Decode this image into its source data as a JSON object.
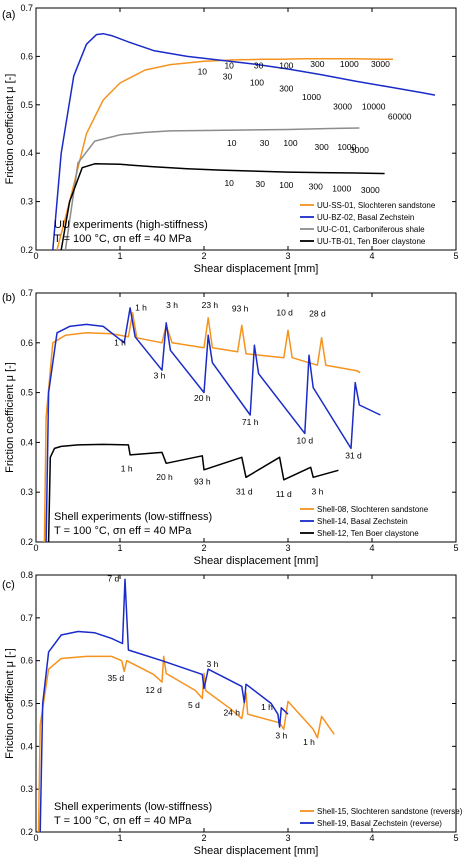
{
  "colors": {
    "orange": "#f5931f",
    "blue": "#1a2bc8",
    "gray": "#8c8c8c",
    "black": "#000000"
  },
  "chart_data": [
    {
      "panel": "(a)",
      "type": "line",
      "xlabel": "Shear displacement [mm]",
      "ylabel": "Friction coefficient μ [-]",
      "xlim": [
        0,
        5
      ],
      "ylim": [
        0.2,
        0.7
      ],
      "xticks": [
        "0",
        "1",
        "2",
        "3",
        "4",
        "5"
      ],
      "yticks": [
        "0.2",
        "0.3",
        "0.4",
        "0.5",
        "0.6",
        "0.7"
      ],
      "grid": false,
      "legend_position": "lower-right",
      "text_lines": [
        "UU experiments (high-stiffness)",
        "T = 100 °C, σn eff = 40 MPa"
      ],
      "series": [
        {
          "name": "UU-SS-01, Slochteren sandstone",
          "color": "orange",
          "x": [
            0.25,
            0.4,
            0.6,
            0.8,
            1.0,
            1.3,
            1.6,
            2.0,
            2.4,
            2.7,
            2.9,
            3.2,
            3.5,
            3.8,
            4.1,
            4.25
          ],
          "y": [
            0.2,
            0.3,
            0.44,
            0.51,
            0.545,
            0.572,
            0.583,
            0.59,
            0.593,
            0.594,
            0.594,
            0.595,
            0.595,
            0.595,
            0.594,
            0.594
          ]
        },
        {
          "name": "UU-BZ-02, Basal Zechstein",
          "color": "blue",
          "x": [
            0.2,
            0.3,
            0.45,
            0.6,
            0.72,
            0.8,
            0.9,
            1.1,
            1.4,
            1.8,
            2.2,
            2.6,
            3.0,
            3.4,
            3.8,
            4.2,
            4.6,
            4.75
          ],
          "y": [
            0.2,
            0.4,
            0.56,
            0.625,
            0.645,
            0.647,
            0.643,
            0.63,
            0.612,
            0.6,
            0.592,
            0.584,
            0.574,
            0.562,
            0.549,
            0.537,
            0.525,
            0.52
          ]
        },
        {
          "name": "UU-C-01, Carboniferous shale",
          "color": "gray",
          "x": [
            0.35,
            0.5,
            0.7,
            1.0,
            1.3,
            1.6,
            2.0,
            2.5,
            3.0,
            3.5,
            3.85
          ],
          "y": [
            0.2,
            0.38,
            0.425,
            0.438,
            0.443,
            0.446,
            0.447,
            0.448,
            0.449,
            0.451,
            0.452
          ]
        },
        {
          "name": "UU-TB-01, Ten Boer claystone",
          "color": "black",
          "x": [
            0.3,
            0.4,
            0.55,
            0.7,
            1.0,
            1.4,
            1.8,
            2.2,
            2.6,
            3.0,
            3.4,
            3.8,
            4.15
          ],
          "y": [
            0.2,
            0.3,
            0.37,
            0.378,
            0.377,
            0.372,
            0.368,
            0.365,
            0.363,
            0.361,
            0.36,
            0.359,
            0.358
          ]
        }
      ],
      "annotations": [
        {
          "text": "10",
          "x": 2.3,
          "y": 0.575
        },
        {
          "text": "10",
          "x": 1.98,
          "y": 0.563
        },
        {
          "text": "30",
          "x": 2.65,
          "y": 0.575
        },
        {
          "text": "30",
          "x": 2.28,
          "y": 0.552
        },
        {
          "text": "100",
          "x": 2.98,
          "y": 0.575
        },
        {
          "text": "100",
          "x": 2.63,
          "y": 0.54
        },
        {
          "text": "300",
          "x": 3.35,
          "y": 0.578
        },
        {
          "text": "300",
          "x": 2.98,
          "y": 0.527
        },
        {
          "text": "1000",
          "x": 3.73,
          "y": 0.578
        },
        {
          "text": "1000",
          "x": 3.28,
          "y": 0.51
        },
        {
          "text": "3000",
          "x": 4.1,
          "y": 0.578
        },
        {
          "text": "3000",
          "x": 3.65,
          "y": 0.49
        },
        {
          "text": "10000",
          "x": 4.02,
          "y": 0.49
        },
        {
          "text": "60000",
          "x": 4.33,
          "y": 0.47
        },
        {
          "text": "10",
          "x": 2.33,
          "y": 0.415
        },
        {
          "text": "30",
          "x": 2.72,
          "y": 0.415
        },
        {
          "text": "100",
          "x": 3.03,
          "y": 0.415
        },
        {
          "text": "300",
          "x": 3.4,
          "y": 0.407
        },
        {
          "text": "1000",
          "x": 3.7,
          "y": 0.407
        },
        {
          "text": "3000",
          "x": 3.85,
          "y": 0.4
        },
        {
          "text": "10",
          "x": 2.3,
          "y": 0.332
        },
        {
          "text": "30",
          "x": 2.67,
          "y": 0.33
        },
        {
          "text": "100",
          "x": 2.98,
          "y": 0.328
        },
        {
          "text": "300",
          "x": 3.33,
          "y": 0.325
        },
        {
          "text": "1000",
          "x": 3.64,
          "y": 0.321
        },
        {
          "text": "3000",
          "x": 3.98,
          "y": 0.318
        }
      ]
    },
    {
      "panel": "(b)",
      "type": "line",
      "xlabel": "Shear displacement [mm]",
      "ylabel": "Friction coefficient μ [-]",
      "xlim": [
        0,
        5
      ],
      "ylim": [
        0.2,
        0.7
      ],
      "xticks": [
        "0",
        "1",
        "2",
        "3",
        "4",
        "5"
      ],
      "yticks": [
        "0.2",
        "0.3",
        "0.4",
        "0.5",
        "0.6",
        "0.7"
      ],
      "grid": false,
      "legend_position": "lower-right",
      "text_lines": [
        "Shell experiments (low-stiffness)",
        "T = 100 °C, σn eff = 40 MPa"
      ],
      "series": [
        {
          "name": "Shell-08, Slochteren sandstone",
          "color": "orange",
          "x": [
            0.1,
            0.12,
            0.2,
            0.35,
            0.6,
            0.9,
            1.1,
            1.15,
            1.2,
            1.5,
            1.55,
            1.62,
            2.0,
            2.05,
            2.1,
            2.4,
            2.45,
            2.5,
            2.95,
            3.0,
            3.05,
            3.35,
            3.4,
            3.45,
            3.82,
            3.86
          ],
          "y": [
            0.2,
            0.45,
            0.6,
            0.615,
            0.62,
            0.618,
            0.612,
            0.66,
            0.61,
            0.6,
            0.635,
            0.6,
            0.59,
            0.65,
            0.59,
            0.582,
            0.635,
            0.578,
            0.57,
            0.625,
            0.57,
            0.555,
            0.61,
            0.555,
            0.544,
            0.54
          ]
        },
        {
          "name": "Shell-14, Basal Zechstein",
          "color": "blue",
          "x": [
            0.12,
            0.15,
            0.25,
            0.4,
            0.6,
            0.8,
            1.05,
            1.12,
            1.18,
            1.5,
            1.55,
            1.6,
            2.0,
            2.05,
            2.1,
            2.55,
            2.6,
            2.65,
            3.2,
            3.25,
            3.3,
            3.75,
            3.8,
            3.85,
            4.1
          ],
          "y": [
            0.2,
            0.5,
            0.62,
            0.633,
            0.637,
            0.633,
            0.6,
            0.67,
            0.612,
            0.545,
            0.64,
            0.585,
            0.5,
            0.615,
            0.56,
            0.455,
            0.595,
            0.538,
            0.418,
            0.575,
            0.51,
            0.388,
            0.52,
            0.475,
            0.455
          ]
        },
        {
          "name": "Shell-12, Ten Boer claystone",
          "color": "black",
          "x": [
            0.15,
            0.17,
            0.22,
            0.3,
            0.5,
            0.8,
            1.1,
            1.12,
            1.5,
            1.55,
            1.98,
            2.0,
            2.45,
            2.5,
            2.9,
            2.95,
            3.27,
            3.3,
            3.6
          ],
          "y": [
            0.2,
            0.37,
            0.388,
            0.392,
            0.395,
            0.396,
            0.395,
            0.375,
            0.38,
            0.358,
            0.373,
            0.345,
            0.37,
            0.33,
            0.37,
            0.325,
            0.35,
            0.33,
            0.344
          ]
        }
      ],
      "annotations": [
        {
          "text": "1 h",
          "x": 1.25,
          "y": 0.665
        },
        {
          "text": "1 h",
          "x": 1.0,
          "y": 0.595
        },
        {
          "text": "3 h",
          "x": 1.62,
          "y": 0.67
        },
        {
          "text": "3 h",
          "x": 1.47,
          "y": 0.528
        },
        {
          "text": "23 h",
          "x": 2.07,
          "y": 0.67
        },
        {
          "text": "20 h",
          "x": 1.98,
          "y": 0.483
        },
        {
          "text": "93 h",
          "x": 2.43,
          "y": 0.663
        },
        {
          "text": "71 h",
          "x": 2.55,
          "y": 0.435
        },
        {
          "text": "10 d",
          "x": 2.96,
          "y": 0.655
        },
        {
          "text": "10 d",
          "x": 3.2,
          "y": 0.398
        },
        {
          "text": "28 d",
          "x": 3.35,
          "y": 0.653
        },
        {
          "text": "31 d",
          "x": 3.78,
          "y": 0.368
        },
        {
          "text": "1 h",
          "x": 1.08,
          "y": 0.342
        },
        {
          "text": "20 h",
          "x": 1.53,
          "y": 0.325
        },
        {
          "text": "93 h",
          "x": 1.98,
          "y": 0.315
        },
        {
          "text": "31 d",
          "x": 2.48,
          "y": 0.295
        },
        {
          "text": "11 d",
          "x": 2.95,
          "y": 0.29
        },
        {
          "text": "3 h",
          "x": 3.35,
          "y": 0.295
        }
      ]
    },
    {
      "panel": "(c)",
      "type": "line",
      "xlabel": "Shear displacement [mm]",
      "ylabel": "Friction coefficient μ [-]",
      "xlim": [
        0,
        5
      ],
      "ylim": [
        0.2,
        0.8
      ],
      "xticks": [
        "0",
        "1",
        "2",
        "3",
        "4",
        "5"
      ],
      "yticks": [
        "0.2",
        "0.3",
        "0.4",
        "0.5",
        "0.6",
        "0.7",
        "0.8"
      ],
      "grid": false,
      "legend_position": "lower-right",
      "text_lines": [
        "Shell experiments (low-stiffness)",
        "T = 100 °C, σn eff = 40 MPa"
      ],
      "series": [
        {
          "name": "Shell-15, Slochteren sandstone (reverse)",
          "color": "orange",
          "x": [
            0.03,
            0.05,
            0.15,
            0.3,
            0.6,
            0.9,
            1.02,
            1.05,
            1.08,
            1.4,
            1.5,
            1.52,
            1.55,
            1.9,
            1.98,
            2.0,
            2.02,
            2.3,
            2.45,
            2.5,
            2.52,
            2.9,
            2.95,
            3.0,
            3.3,
            3.35,
            3.4,
            3.55
          ],
          "y": [
            0.2,
            0.45,
            0.58,
            0.605,
            0.61,
            0.61,
            0.6,
            0.575,
            0.6,
            0.568,
            0.55,
            0.61,
            0.57,
            0.53,
            0.512,
            0.57,
            0.53,
            0.49,
            0.465,
            0.525,
            0.475,
            0.455,
            0.44,
            0.505,
            0.44,
            0.42,
            0.47,
            0.428
          ]
        },
        {
          "name": "Shell-19, Basal Zechstein (reverse)",
          "color": "blue",
          "x": [
            0.05,
            0.08,
            0.15,
            0.3,
            0.5,
            0.7,
            0.9,
            1.03,
            1.06,
            1.1,
            1.5,
            1.98,
            2.0,
            2.05,
            2.3,
            2.45,
            2.48,
            2.5,
            2.8,
            2.88,
            2.9,
            2.92,
            3.0
          ],
          "y": [
            0.2,
            0.5,
            0.62,
            0.66,
            0.668,
            0.665,
            0.652,
            0.64,
            0.79,
            0.625,
            0.6,
            0.568,
            0.535,
            0.58,
            0.555,
            0.54,
            0.502,
            0.545,
            0.5,
            0.475,
            0.445,
            0.49,
            0.475
          ]
        }
      ],
      "annotations": [
        {
          "text": "7 d",
          "x": 0.92,
          "y": 0.785
        },
        {
          "text": "35 d",
          "x": 0.95,
          "y": 0.552
        },
        {
          "text": "12 d",
          "x": 1.4,
          "y": 0.525
        },
        {
          "text": "3 h",
          "x": 2.1,
          "y": 0.585
        },
        {
          "text": "5 d",
          "x": 1.88,
          "y": 0.49
        },
        {
          "text": "24 h",
          "x": 2.33,
          "y": 0.472
        },
        {
          "text": "1 h",
          "x": 2.75,
          "y": 0.485
        },
        {
          "text": "3 h",
          "x": 2.92,
          "y": 0.418
        },
        {
          "text": "1 h",
          "x": 3.25,
          "y": 0.403
        }
      ]
    }
  ]
}
